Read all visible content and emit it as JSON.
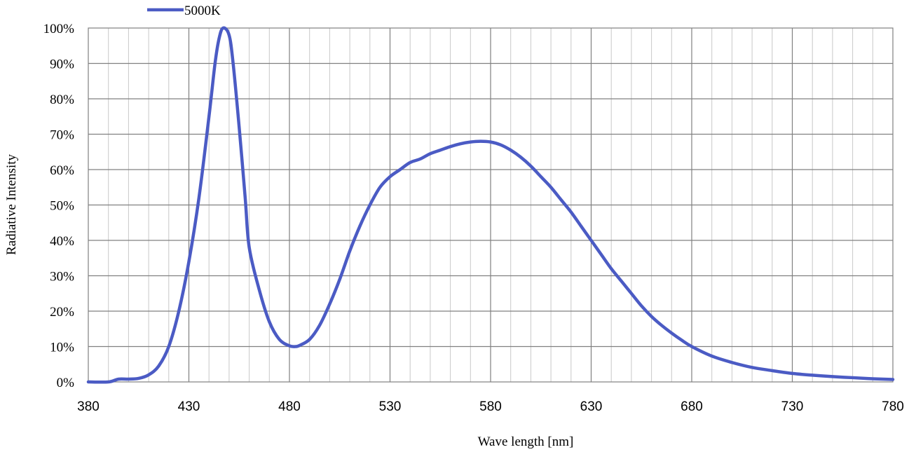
{
  "chart_data": {
    "type": "line",
    "xlabel": "Wave length [nm]",
    "ylabel": "Radiative Intensity",
    "xlim": [
      380,
      780
    ],
    "ylim": [
      0,
      100
    ],
    "x_ticks": [
      "380",
      "430",
      "480",
      "530",
      "580",
      "630",
      "680",
      "730",
      "780"
    ],
    "y_ticks": [
      "0%",
      "10%",
      "20%",
      "30%",
      "40%",
      "50%",
      "60%",
      "70%",
      "80%",
      "90%",
      "100%"
    ],
    "grid": true,
    "legend_position": "top-left",
    "series": [
      {
        "name": "5000K",
        "color": "#4B5BC4",
        "points": [
          [
            380,
            0
          ],
          [
            390,
            0
          ],
          [
            395,
            0.8
          ],
          [
            400,
            0.8
          ],
          [
            405,
            1
          ],
          [
            410,
            2
          ],
          [
            415,
            4.5
          ],
          [
            420,
            10
          ],
          [
            425,
            20
          ],
          [
            430,
            34
          ],
          [
            435,
            52
          ],
          [
            440,
            75
          ],
          [
            443,
            90
          ],
          [
            445,
            97
          ],
          [
            447,
            100
          ],
          [
            450,
            98
          ],
          [
            452,
            90
          ],
          [
            455,
            72
          ],
          [
            458,
            52
          ],
          [
            460,
            38
          ],
          [
            465,
            26
          ],
          [
            470,
            17
          ],
          [
            475,
            12
          ],
          [
            480,
            10.2
          ],
          [
            483,
            10
          ],
          [
            485,
            10.3
          ],
          [
            490,
            12
          ],
          [
            495,
            16
          ],
          [
            500,
            22
          ],
          [
            505,
            29
          ],
          [
            510,
            37
          ],
          [
            515,
            44
          ],
          [
            520,
            50
          ],
          [
            525,
            55
          ],
          [
            530,
            58
          ],
          [
            535,
            60
          ],
          [
            540,
            62
          ],
          [
            545,
            63
          ],
          [
            550,
            64.5
          ],
          [
            555,
            65.5
          ],
          [
            560,
            66.5
          ],
          [
            565,
            67.3
          ],
          [
            570,
            67.8
          ],
          [
            575,
            68
          ],
          [
            580,
            67.8
          ],
          [
            585,
            67
          ],
          [
            590,
            65.5
          ],
          [
            595,
            63.5
          ],
          [
            600,
            61
          ],
          [
            605,
            58
          ],
          [
            610,
            55
          ],
          [
            615,
            51.5
          ],
          [
            620,
            48
          ],
          [
            625,
            44
          ],
          [
            630,
            40
          ],
          [
            635,
            36
          ],
          [
            640,
            32
          ],
          [
            645,
            28.5
          ],
          [
            650,
            25
          ],
          [
            655,
            21.5
          ],
          [
            660,
            18.5
          ],
          [
            665,
            16
          ],
          [
            670,
            13.8
          ],
          [
            675,
            11.8
          ],
          [
            680,
            10
          ],
          [
            690,
            7.3
          ],
          [
            700,
            5.5
          ],
          [
            710,
            4.1
          ],
          [
            720,
            3.2
          ],
          [
            730,
            2.4
          ],
          [
            740,
            1.9
          ],
          [
            750,
            1.5
          ],
          [
            760,
            1.2
          ],
          [
            770,
            0.9
          ],
          [
            780,
            0.7
          ]
        ]
      }
    ]
  }
}
